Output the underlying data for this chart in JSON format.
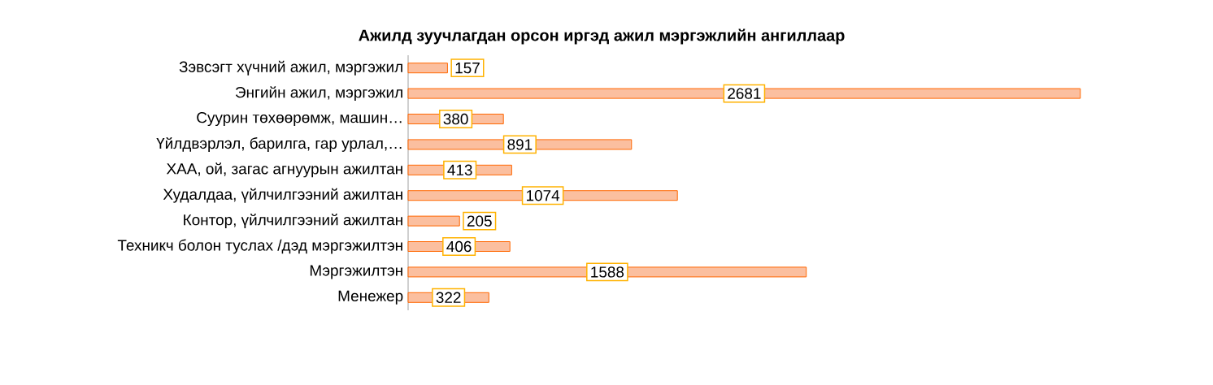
{
  "chart_data": {
    "type": "bar",
    "orientation": "horizontal",
    "title": "Ажилд зуучлагдан орсон иргэд ажил мэргэжлийн ангиллаар",
    "categories": [
      "Зэвсэгт хүчний ажил, мэргэжил",
      "Энгийн ажил, мэргэжил",
      "Суурин төхөөрөмж, машин…",
      "Үйлдвэрлэл, барилга, гар урлал,…",
      "ХАА, ой, загас агнуурын ажилтан",
      "Худалдаа, үйлчилгээний ажилтан",
      "Контор, үйлчилгээний ажилтан",
      "Техникч болон туслах /дэд мэргэжилтэн",
      "Мэргэжилтэн",
      "Менежер"
    ],
    "values": [
      157,
      2681,
      380,
      891,
      413,
      1074,
      205,
      406,
      1588,
      322
    ],
    "color": "#fbbf9f",
    "data_labels": true
  }
}
